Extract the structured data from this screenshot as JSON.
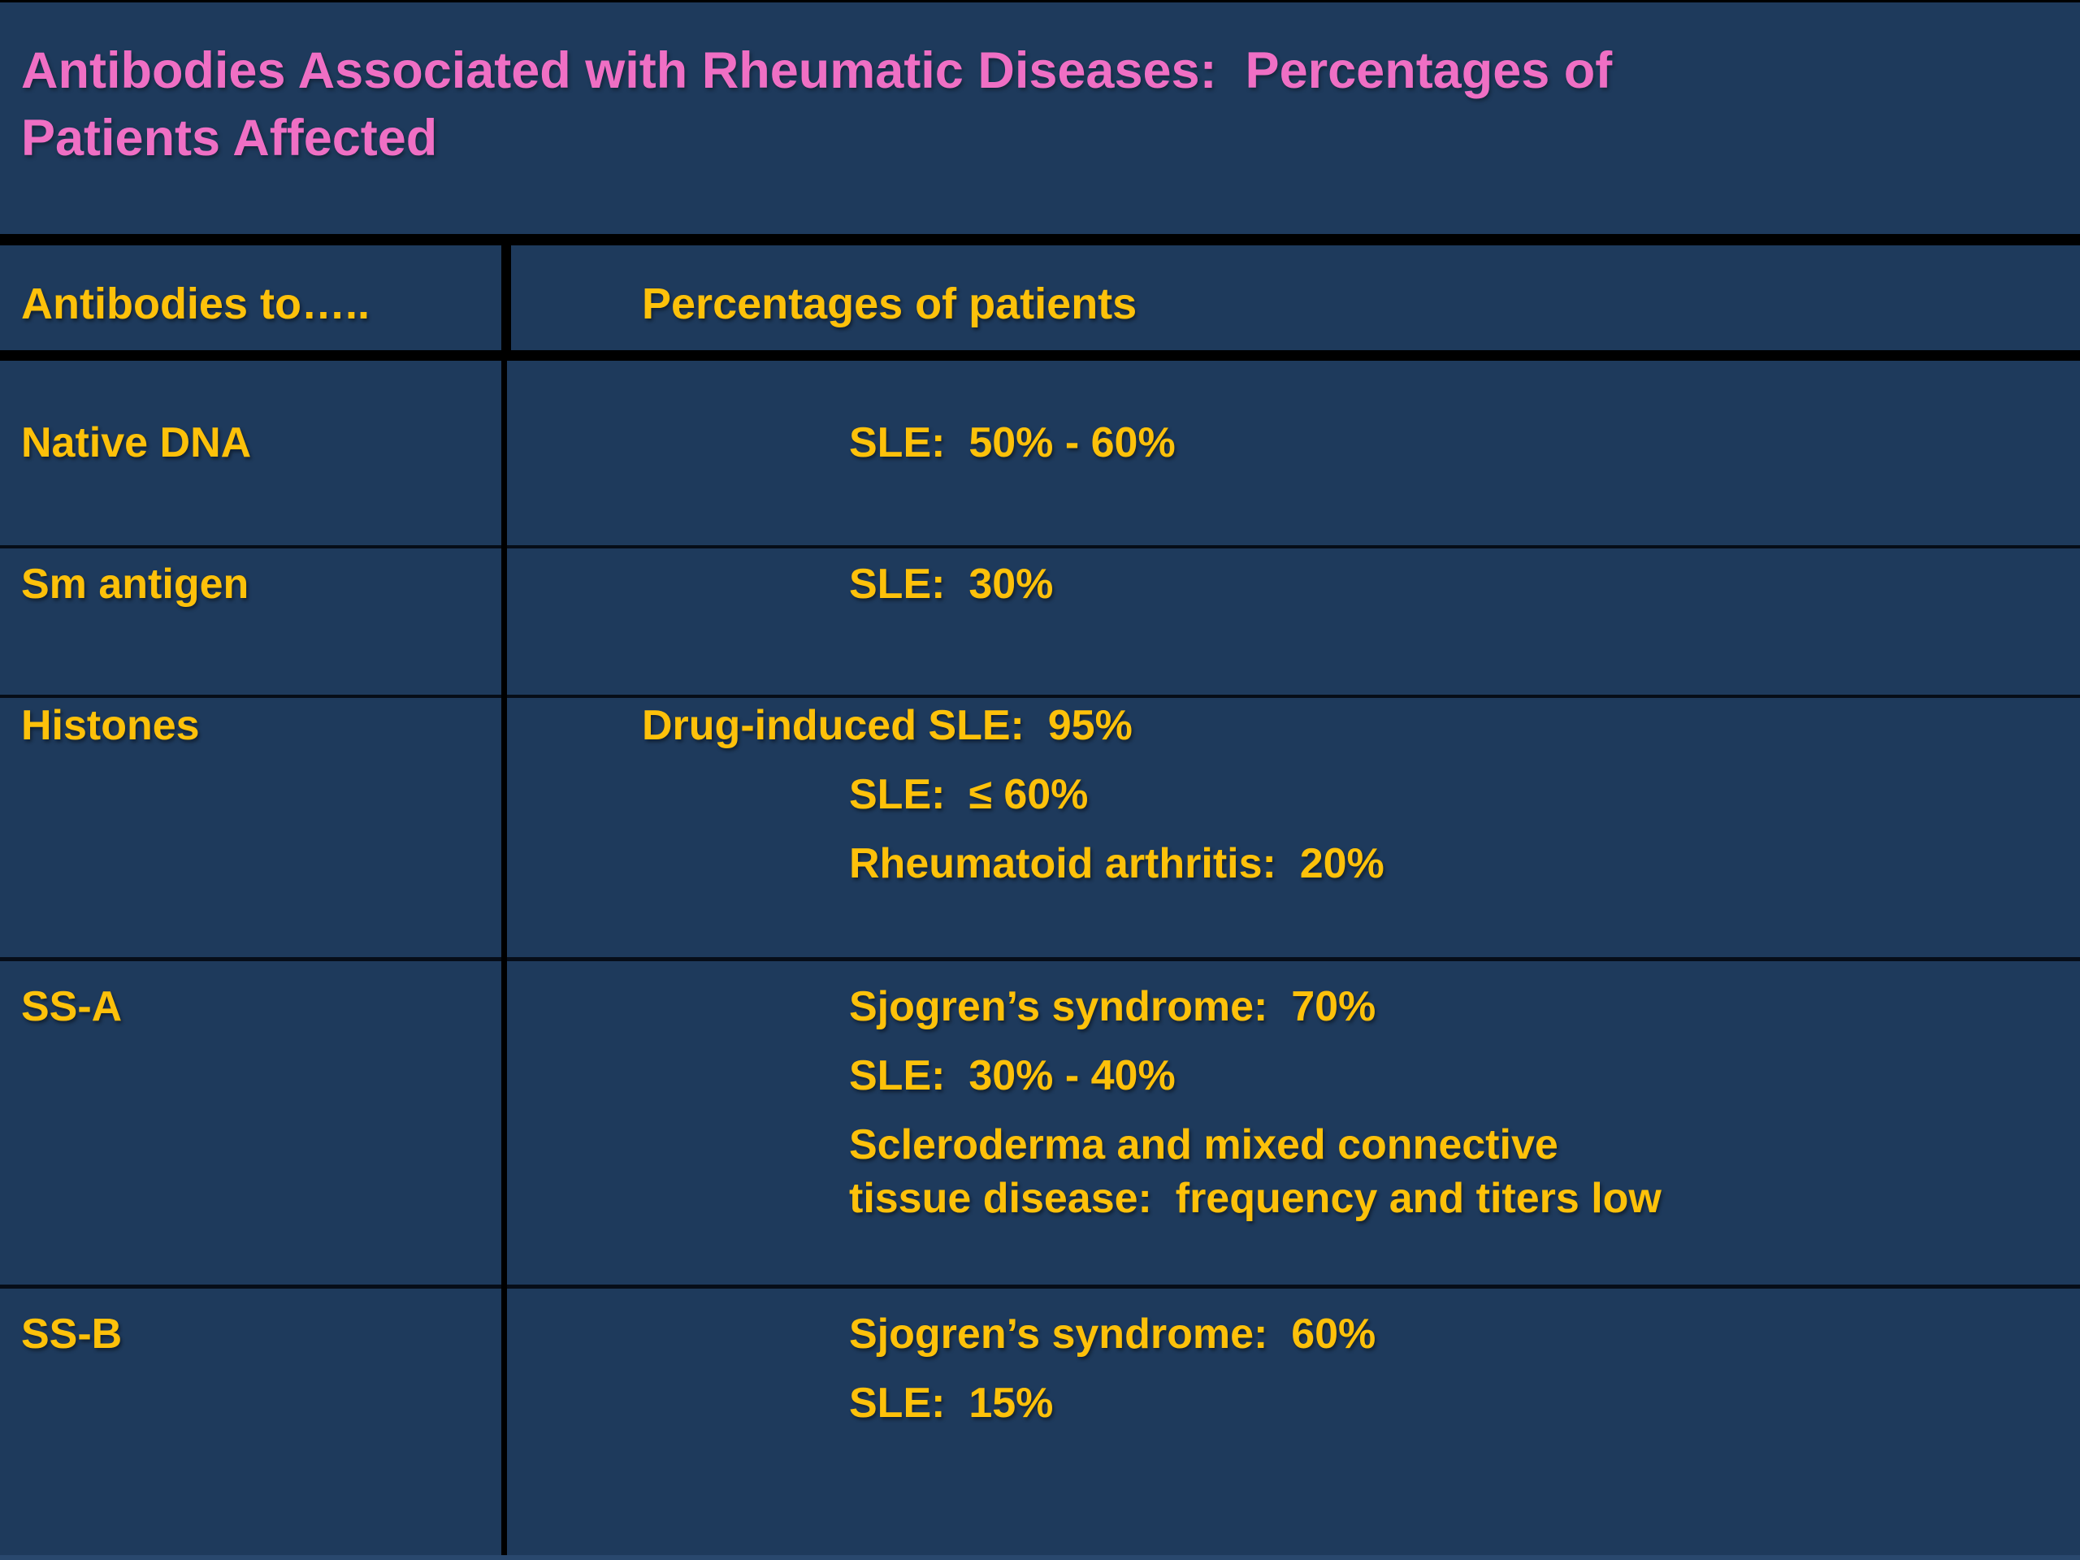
{
  "slide": {
    "title": "Antibodies Associated with Rheumatic Diseases:  Percentages of\nPatients Affected"
  },
  "table": {
    "columns": [
      "Antibodies to…..",
      "Percentages of patients"
    ],
    "rows": [
      {
        "label": "Native DNA",
        "values": [
          {
            "text": "SLE:  50% - 60%",
            "indent": "deep"
          }
        ]
      },
      {
        "label": "Sm antigen",
        "values": [
          {
            "text": "SLE:  30%",
            "indent": "deep"
          }
        ]
      },
      {
        "label": "Histones",
        "values": [
          {
            "text": "Drug-induced SLE:  95%",
            "indent": "shallow"
          },
          {
            "text": "SLE:  ≤ 60%",
            "indent": "deep"
          },
          {
            "text": "Rheumatoid arthritis:  20%",
            "indent": "deep"
          }
        ]
      },
      {
        "label": "SS-A",
        "values": [
          {
            "text": "Sjogren’s syndrome:  70%",
            "indent": "deep"
          },
          {
            "text": "SLE:  30% - 40%",
            "indent": "deep"
          },
          {
            "text": "Scleroderma and mixed connective\ntissue disease:  frequency and titers low",
            "indent": "deep"
          }
        ]
      },
      {
        "label": "SS-B",
        "values": [
          {
            "text": "Sjogren’s syndrome:  60%",
            "indent": "deep"
          },
          {
            "text": "SLE:  15%",
            "indent": "deep"
          }
        ]
      }
    ]
  },
  "colors": {
    "background": "#1e3a5c",
    "title_pink": "#ef6fc4",
    "text_gold": "#fdc10a",
    "border_black": "#000000",
    "bottom_strip": "#29486e"
  }
}
